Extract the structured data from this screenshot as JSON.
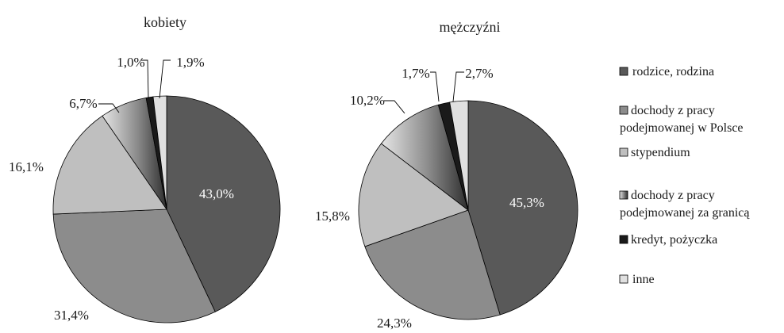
{
  "chart_data": {
    "type": "pie",
    "categories": [
      "rodzice, rodzina",
      "dochody z pracy podejmowanej w Polsce",
      "stypendium",
      "dochody z pracy podejmowanej za granicą",
      "kredyt, pożyczka",
      "inne"
    ],
    "legend": {
      "placement": "right",
      "entries": [
        [
          "rodzice, rodzina"
        ],
        [
          "dochody z pracy",
          "podejmowanej w Polsce"
        ],
        [
          "stypendium"
        ],
        [
          "dochody z  pracy",
          "podejmowanej za granicą"
        ],
        [
          "kredyt, pożyczka"
        ],
        [
          "inne"
        ]
      ]
    },
    "colors": [
      "#595959",
      "#8c8c8c",
      "#bfbfbf",
      "gradient",
      "#1a1a1a",
      "#e0e0e0"
    ],
    "charts": [
      {
        "title": "kobiety",
        "values": [
          43.0,
          31.4,
          16.1,
          6.7,
          1.0,
          1.9
        ],
        "labels": [
          "43,0%",
          "31,4%",
          "16,1%",
          "6,7%",
          "1,0%",
          "1,9%"
        ]
      },
      {
        "title": "mężczyźni",
        "values": [
          45.3,
          24.3,
          15.8,
          10.2,
          1.7,
          2.7
        ],
        "labels": [
          "45,3%",
          "24,3%",
          "15,8%",
          "10,2%",
          "1,7%",
          "2,7%"
        ]
      }
    ]
  }
}
